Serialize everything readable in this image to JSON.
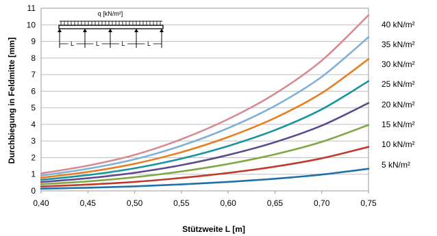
{
  "chart_data": {
    "type": "line",
    "title": "",
    "xlabel": "Stützweite L [m]",
    "ylabel": "Durchbiegung in Feldmitte [mm]",
    "xlim": [
      0.4,
      0.75
    ],
    "ylim": [
      0,
      11
    ],
    "grid": true,
    "x_ticks": [
      "0,40",
      "0,45",
      "0,50",
      "0,55",
      "0,60",
      "0,65",
      "0,70",
      "0,75"
    ],
    "y_ticks": [
      "0",
      "1",
      "2",
      "3",
      "4",
      "5",
      "6",
      "7",
      "8",
      "9",
      "10",
      "11"
    ],
    "x": [
      0.4,
      0.45,
      0.5,
      0.55,
      0.6,
      0.65,
      0.7,
      0.75
    ],
    "series": [
      {
        "name": "5 kN/m²",
        "color": "#1f6fa8",
        "values": [
          0.13,
          0.19,
          0.27,
          0.39,
          0.54,
          0.73,
          0.98,
          1.33
        ]
      },
      {
        "name": "10 kN/m²",
        "color": "#c0392b",
        "values": [
          0.26,
          0.38,
          0.54,
          0.78,
          1.08,
          1.46,
          1.96,
          2.65
        ]
      },
      {
        "name": "15 kN/m²",
        "color": "#7fa844",
        "values": [
          0.4,
          0.57,
          0.82,
          1.17,
          1.62,
          2.2,
          2.95,
          3.97
        ]
      },
      {
        "name": "20 kN/m²",
        "color": "#5e4a8c",
        "values": [
          0.53,
          0.76,
          1.09,
          1.55,
          2.16,
          2.93,
          3.93,
          5.29
        ]
      },
      {
        "name": "25 kN/m²",
        "color": "#17949e",
        "values": [
          0.66,
          0.95,
          1.36,
          1.94,
          2.7,
          3.66,
          4.91,
          6.61
        ]
      },
      {
        "name": "30 kN/m²",
        "color": "#e67e22",
        "values": [
          0.79,
          1.14,
          1.63,
          2.33,
          3.24,
          4.39,
          5.89,
          7.94
        ]
      },
      {
        "name": "35 kN/m²",
        "color": "#7fb0d8",
        "values": [
          0.92,
          1.33,
          1.9,
          2.72,
          3.78,
          5.12,
          6.87,
          9.26
        ]
      },
      {
        "name": "40 kN/m²",
        "color": "#d68a92",
        "values": [
          1.05,
          1.52,
          2.17,
          3.11,
          4.32,
          5.85,
          7.85,
          10.58
        ]
      }
    ],
    "inset": {
      "load_label": "q [kN/m²]",
      "span_label": "L"
    }
  }
}
